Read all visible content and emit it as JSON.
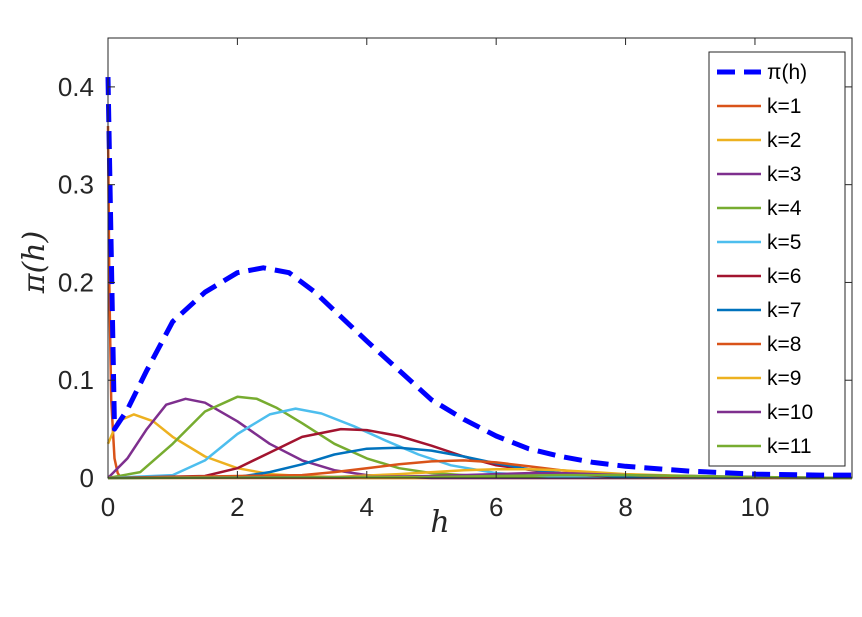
{
  "chart_data": {
    "type": "line",
    "xlabel": "h",
    "ylabel": "π(h)",
    "xlim": [
      0,
      11.5
    ],
    "ylim": [
      0,
      0.45
    ],
    "xticks": [
      0,
      2,
      4,
      6,
      8,
      10
    ],
    "yticks": [
      0,
      0.1,
      0.2,
      0.3,
      0.4
    ],
    "xtick_labels": [
      "0",
      "2",
      "4",
      "6",
      "8",
      "10"
    ],
    "ytick_labels": [
      "0",
      "0.1",
      "0.2",
      "0.3",
      "0.4"
    ],
    "grid": false,
    "legend_position": "top-right",
    "series": [
      {
        "name": "π(h)",
        "color": "#0000FF",
        "dashed": true,
        "x": [
          0,
          0.1,
          0.3,
          0.6,
          1.0,
          1.5,
          2.0,
          2.4,
          2.8,
          3.2,
          3.6,
          4.0,
          4.5,
          5.0,
          5.5,
          6.0,
          6.5,
          7.0,
          7.5,
          8.0,
          9.0,
          10.0,
          11.0,
          11.5
        ],
        "y": [
          0.41,
          0.05,
          0.07,
          0.11,
          0.16,
          0.19,
          0.21,
          0.215,
          0.21,
          0.19,
          0.165,
          0.14,
          0.11,
          0.08,
          0.06,
          0.043,
          0.03,
          0.022,
          0.016,
          0.012,
          0.007,
          0.004,
          0.003,
          0.003
        ]
      },
      {
        "name": "k=1",
        "color": "#D95319",
        "dashed": false,
        "x": [
          0,
          0.02,
          0.05,
          0.1,
          0.15,
          0.2,
          0.4,
          11.5
        ],
        "y": [
          0.36,
          0.2,
          0.08,
          0.02,
          0.005,
          0.0,
          0.0,
          0.0
        ]
      },
      {
        "name": "k=2",
        "color": "#EDB120",
        "dashed": false,
        "x": [
          0,
          0.15,
          0.4,
          0.7,
          1.0,
          1.5,
          2.0,
          2.5,
          3.0,
          4.0,
          11.5
        ],
        "y": [
          0.035,
          0.058,
          0.065,
          0.058,
          0.042,
          0.022,
          0.01,
          0.004,
          0.002,
          0.0,
          0.0
        ]
      },
      {
        "name": "k=3",
        "color": "#7E2F8E",
        "dashed": false,
        "x": [
          0,
          0.3,
          0.6,
          0.9,
          1.2,
          1.5,
          2.0,
          2.5,
          3.0,
          3.5,
          4.0,
          5.0,
          11.5
        ],
        "y": [
          0.0,
          0.02,
          0.05,
          0.075,
          0.081,
          0.077,
          0.058,
          0.035,
          0.018,
          0.008,
          0.003,
          0.0,
          0.0
        ]
      },
      {
        "name": "k=4",
        "color": "#77AC30",
        "dashed": false,
        "x": [
          0,
          0.5,
          1.0,
          1.5,
          2.0,
          2.3,
          2.6,
          3.0,
          3.5,
          4.0,
          4.5,
          5.0,
          6.0,
          11.5
        ],
        "y": [
          0.0,
          0.006,
          0.035,
          0.068,
          0.083,
          0.081,
          0.072,
          0.056,
          0.035,
          0.02,
          0.01,
          0.005,
          0.001,
          0.0
        ]
      },
      {
        "name": "k=5",
        "color": "#4DBEEE",
        "dashed": false,
        "x": [
          0,
          1.0,
          1.5,
          2.0,
          2.5,
          2.9,
          3.3,
          3.8,
          4.3,
          4.8,
          5.3,
          6.0,
          7.0,
          11.5
        ],
        "y": [
          0.0,
          0.003,
          0.018,
          0.045,
          0.065,
          0.071,
          0.066,
          0.053,
          0.038,
          0.024,
          0.013,
          0.005,
          0.001,
          0.0
        ]
      },
      {
        "name": "k=6",
        "color": "#A2142F",
        "dashed": false,
        "x": [
          0,
          1.5,
          2.0,
          2.5,
          3.0,
          3.6,
          4.0,
          4.5,
          5.0,
          5.5,
          6.0,
          7.0,
          8.0,
          11.5
        ],
        "y": [
          0.0,
          0.002,
          0.01,
          0.026,
          0.042,
          0.05,
          0.049,
          0.043,
          0.033,
          0.022,
          0.013,
          0.004,
          0.001,
          0.0
        ]
      },
      {
        "name": "k=7",
        "color": "#0072BD",
        "dashed": false,
        "x": [
          0,
          2.0,
          2.5,
          3.0,
          3.5,
          4.0,
          4.5,
          5.0,
          5.5,
          6.0,
          6.5,
          7.0,
          8.0,
          11.5
        ],
        "y": [
          0.0,
          0.001,
          0.006,
          0.014,
          0.024,
          0.03,
          0.031,
          0.028,
          0.022,
          0.015,
          0.009,
          0.005,
          0.001,
          0.0
        ]
      },
      {
        "name": "k=8",
        "color": "#D95319",
        "dashed": false,
        "x": [
          0,
          3.0,
          3.5,
          4.0,
          4.5,
          5.0,
          5.5,
          6.0,
          6.5,
          7.0,
          7.5,
          8.0,
          9.0,
          11.5
        ],
        "y": [
          0.0,
          0.003,
          0.006,
          0.01,
          0.014,
          0.017,
          0.018,
          0.016,
          0.012,
          0.008,
          0.005,
          0.003,
          0.001,
          0.0
        ]
      },
      {
        "name": "k=9",
        "color": "#EDB120",
        "dashed": false,
        "x": [
          0,
          3.5,
          4.5,
          5.5,
          6.0,
          6.5,
          7.0,
          7.5,
          8.0,
          9.0,
          10.0,
          11.5
        ],
        "y": [
          0.0,
          0.001,
          0.004,
          0.008,
          0.009,
          0.009,
          0.008,
          0.006,
          0.004,
          0.002,
          0.0005,
          0.0
        ]
      },
      {
        "name": "k=10",
        "color": "#7E2F8E",
        "dashed": false,
        "x": [
          0,
          4.0,
          5.0,
          6.0,
          6.5,
          7.0,
          7.5,
          8.0,
          9.0,
          10.0,
          11.5
        ],
        "y": [
          0.0,
          0.001,
          0.002,
          0.004,
          0.005,
          0.005,
          0.004,
          0.003,
          0.002,
          0.001,
          0.0
        ]
      },
      {
        "name": "k=11",
        "color": "#77AC30",
        "dashed": false,
        "x": [
          0,
          5.0,
          6.0,
          7.0,
          7.5,
          8.0,
          9.0,
          10.0,
          11.5
        ],
        "y": [
          0.0,
          0.001,
          0.002,
          0.003,
          0.003,
          0.003,
          0.002,
          0.001,
          0.0
        ]
      }
    ]
  }
}
